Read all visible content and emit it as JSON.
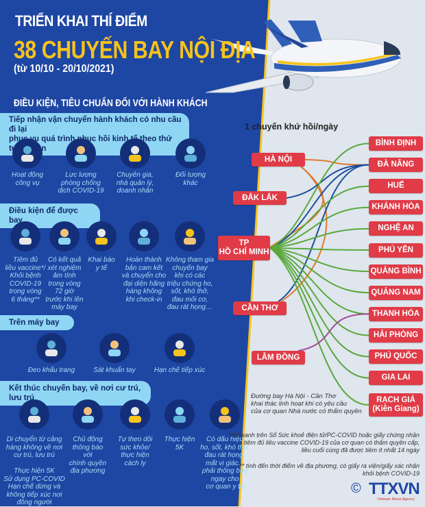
{
  "header": {
    "line1": "TRIỂN KHAI THÍ ĐIỂM",
    "line2": "38 CHUYẾN BAY NỘI ĐỊA",
    "line3": "(từ 10/10 - 20/10/2021)"
  },
  "section_title": "ĐIỀU KIỆN, TIÊU CHUẨN ĐỐI VỚI HÀNH KHÁCH",
  "priority": {
    "title": "Tiếp nhận vận chuyển hành khách có nhu cầu đi lại\nphục vụ quá trình phục hồi kinh tế theo thứ tự ưu tiên",
    "items": [
      {
        "icon": "briefcase-icon",
        "label": "Hoạt động\ncông vụ"
      },
      {
        "icon": "medical-worker-icon",
        "label": "Lực lượng\nphòng chống\ndịch COVID-19"
      },
      {
        "icon": "businessman-icon",
        "label": "Chuyên gia,\nnhà quản lý,\ndoanh nhân"
      },
      {
        "icon": "people-icon",
        "label": "Đối tượng\nkhác"
      }
    ]
  },
  "conditions": {
    "title": "Điều kiện để được bay",
    "items": [
      {
        "icon": "vaccine-icon",
        "label": "Tiêm đủ\nliều vaccine*/\nKhỏi bệnh\nCOVID-19\ntrong vòng\n6 tháng**"
      },
      {
        "icon": "certificate-icon",
        "label": "Có kết quả\nxét nghiệm\nâm tính\ntrong vòng\n72 giờ\ntrước khi lên\nmáy bay"
      },
      {
        "icon": "health-declaration-icon",
        "label": "Khai báo\ny tế"
      },
      {
        "icon": "document-icon",
        "label": "Hoàn thành\nbản cam kết\nvà chuyển cho\nđại diện hãng\nhàng không\nkhi check-in"
      },
      {
        "icon": "coughing-person-icon",
        "label": "Không tham gia\nchuyến bay\nkhi có các\ntriệu chứng ho,\nsốt, khó thở,\nđau mỏi cơ,\nđau rát họng…"
      }
    ]
  },
  "onboard": {
    "title": "Trên máy bay",
    "items": [
      {
        "icon": "face-mask-icon",
        "label": "Đeo khẩu trang"
      },
      {
        "icon": "hand-sanitizer-icon",
        "label": "Sát khuẩn tay"
      },
      {
        "icon": "distancing-icon",
        "label": "Hạn chế tiếp xúc"
      }
    ]
  },
  "after": {
    "title": "Kết thúc chuyến bay, về nơi cư trú, lưu trú",
    "items": [
      {
        "icon": "smartphone-icon",
        "label": "Di chuyển từ cảng\nhàng không về nơi\ncư trú, lưu trú\n\nThực hiện 5K\nSử dụng PC-COVID\nHạn chế dừng và\nkhông tiếp xúc nơi\nđông người"
      },
      {
        "icon": "megaphone-icon",
        "label": "Chủ động\nthông báo\nvới\nchính quyền\nđịa phương"
      },
      {
        "icon": "home-isolation-icon",
        "label": "Tự theo dõi\nsức khỏe/\nthực hiện\ncách ly"
      },
      {
        "icon": "5k-icon",
        "label": "Thực hiện\n5K"
      },
      {
        "icon": "stethoscope-icon",
        "label": "Có dấu hiệu\nho, sốt, khó thở,\nđau rát họng,\nmất vị giác...\nphải thông báo\nngay cho\ncơ quan y tế"
      }
    ]
  },
  "routes": {
    "frequency": "1 chuyến khứ hồi/ngày",
    "origins": [
      "HÀ NỘI",
      "ĐẮK LẮK",
      "TP\nHỒ CHÍ MINH",
      "CẦN THƠ",
      "LÂM ĐỒNG"
    ],
    "destinations": [
      "BÌNH ĐỊNH",
      "ĐÀ NẴNG",
      "HUẾ",
      "KHÁNH HÒA",
      "NGHỆ AN",
      "PHÚ YÊN",
      "QUẢNG BÌNH",
      "QUẢNG NAM",
      "THANH HÓA",
      "HẢI PHÒNG",
      "PHÚ QUỐC",
      "GIA LAI",
      "RẠCH GIÁ\n(Kiên Giang)"
    ],
    "colors": {
      "hanoi": "#e07a2e",
      "blue": "#1c4f9c",
      "hcm": "#5aa83c",
      "lamdong": "#a04c98"
    },
    "edges": [
      [
        "HÀ NỘI",
        "ĐÀ NẴNG",
        "hanoi"
      ],
      [
        "HÀ NỘI",
        "TP\nHỒ CHÍ MINH",
        "hanoi"
      ],
      [
        "HÀ NỘI",
        "CẦN THƠ",
        "hanoi"
      ],
      [
        "ĐẮK LẮK",
        "ĐÀ NẴNG",
        "blue"
      ],
      [
        "TP\nHỒ CHÍ MINH",
        "ĐÀ NẴNG",
        "blue"
      ],
      [
        "CẦN THƠ",
        "ĐÀ NẴNG",
        "blue"
      ],
      [
        "TP\nHỒ CHÍ MINH",
        "BÌNH ĐỊNH",
        "hcm"
      ],
      [
        "TP\nHỒ CHÍ MINH",
        "HUẾ",
        "hcm"
      ],
      [
        "TP\nHỒ CHÍ MINH",
        "KHÁNH HÒA",
        "hcm"
      ],
      [
        "TP\nHỒ CHÍ MINH",
        "NGHỆ AN",
        "hcm"
      ],
      [
        "TP\nHỒ CHÍ MINH",
        "PHÚ YÊN",
        "hcm"
      ],
      [
        "TP\nHỒ CHÍ MINH",
        "QUẢNG BÌNH",
        "hcm"
      ],
      [
        "TP\nHỒ CHÍ MINH",
        "QUẢNG NAM",
        "hcm"
      ],
      [
        "TP\nHỒ CHÍ MINH",
        "THANH HÓA",
        "hcm"
      ],
      [
        "TP\nHỒ CHÍ MINH",
        "HẢI PHÒNG",
        "hcm"
      ],
      [
        "TP\nHỒ CHÍ MINH",
        "PHÚ QUỐC",
        "hcm"
      ],
      [
        "TP\nHỒ CHÍ MINH",
        "GIA LAI",
        "hcm"
      ],
      [
        "TP\nHỒ CHÍ MINH",
        "RẠCH GIÁ\n(Kiên Giang)",
        "hcm"
      ],
      [
        "LÂM ĐỒNG",
        "THANH HÓA",
        "lamdong"
      ]
    ],
    "note": "Đường bay Hà Nội - Cần Thơ\nkhai thác linh hoạt khi có yêu cầu\ncủa cơ quan Nhà nước có thẩm quyền"
  },
  "footnotes": [
    "*thẻ xanh trên Sổ Sức khoẻ điện tử/PC-COVID hoặc giấy chứng nhận\ntiêm đủ liều vaccine COVID-19 của cơ quan có thẩm quyền cấp,\nliều cuối cùng đã được tiêm ít nhất 14 ngày",
    "** tính đến thời điểm về địa phương, có giấy ra viện/giấy xác nhận\nkhỏi bệnh COVID-19"
  ],
  "logo": {
    "copyright": "©",
    "name": "TTXVN",
    "sub": "Vietnam News Agency"
  },
  "colors": {
    "panel": "#1e46a3",
    "accent": "#f6c31b",
    "node": "#e03b47"
  }
}
